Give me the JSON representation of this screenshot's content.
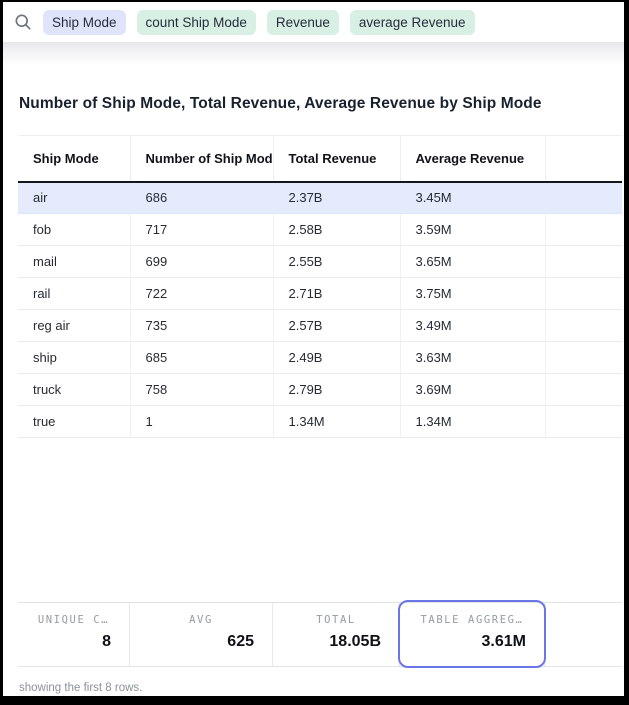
{
  "query_bar": {
    "search_icon": "magnifier",
    "pills": [
      {
        "label": "Ship Mode",
        "type": "dimension"
      },
      {
        "label": "count Ship Mode",
        "type": "measure"
      },
      {
        "label": "Revenue",
        "type": "measure"
      },
      {
        "label": "average Revenue",
        "type": "measure"
      }
    ]
  },
  "title": "Number of Ship Mode, Total Revenue, Average Revenue by Ship Mode",
  "table": {
    "columns": [
      "Ship Mode",
      "Number of Ship Mod",
      "Total Revenue",
      "Average Revenue",
      ""
    ],
    "rows": [
      [
        "air",
        "686",
        "2.37B",
        "3.45M"
      ],
      [
        "fob",
        "717",
        "2.58B",
        "3.59M"
      ],
      [
        "mail",
        "699",
        "2.55B",
        "3.65M"
      ],
      [
        "rail",
        "722",
        "2.71B",
        "3.75M"
      ],
      [
        "reg air",
        "735",
        "2.57B",
        "3.49M"
      ],
      [
        "ship",
        "685",
        "2.49B",
        "3.63M"
      ],
      [
        "truck",
        "758",
        "2.79B",
        "3.69M"
      ],
      [
        "true",
        "1",
        "1.34M",
        "1.34M"
      ]
    ],
    "selected_row_index": 0
  },
  "summary_stats": [
    {
      "label": "UNIQUE C…",
      "value": "8",
      "highlighted": false
    },
    {
      "label": "AVG",
      "value": "625",
      "highlighted": false
    },
    {
      "label": "TOTAL",
      "value": "18.05B",
      "highlighted": false
    },
    {
      "label": "TABLE AGGREG…",
      "value": "3.61M",
      "highlighted": true
    }
  ],
  "footer": {
    "status": "showing the first 8 rows."
  },
  "colors": {
    "pill_dimension_bg": "#dfe4fb",
    "pill_measure_bg": "#d8efe4",
    "selected_row_bg": "#e4ebfc",
    "focus_ring": "#6b76e6",
    "header_rule": "#16171b",
    "stat_label": "#959ca6"
  }
}
